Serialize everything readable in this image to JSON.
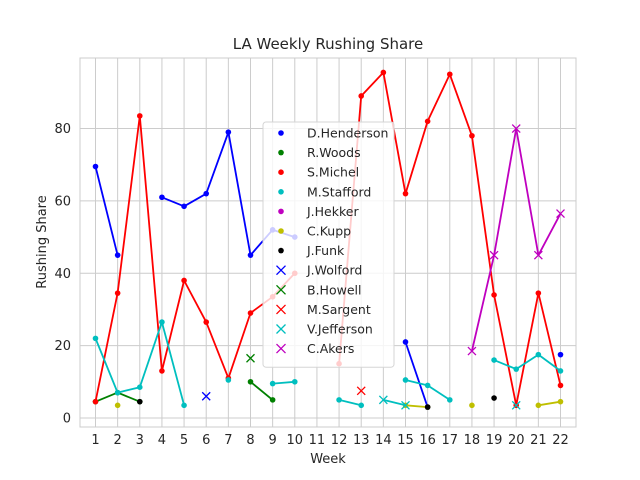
{
  "chart_data": {
    "type": "line",
    "title": "LA Weekly Rushing Share",
    "xlabel": "Week",
    "ylabel": "Rushing Share",
    "xlim": [
      0.3,
      22.7
    ],
    "ylim": [
      -2.5,
      99.5
    ],
    "x_ticks": [
      1,
      2,
      3,
      4,
      5,
      6,
      7,
      8,
      9,
      10,
      11,
      12,
      13,
      14,
      15,
      16,
      17,
      18,
      19,
      20,
      21,
      22
    ],
    "y_ticks": [
      0,
      20,
      40,
      60,
      80
    ],
    "grid": true,
    "legend_position": "center",
    "series": [
      {
        "name": "D.Henderson",
        "color": "#0000ff",
        "marker": "dot",
        "points": [
          [
            1,
            69.5
          ],
          [
            2,
            45
          ],
          null,
          [
            4,
            61
          ],
          [
            5,
            58.5
          ],
          [
            6,
            62
          ],
          [
            7,
            79
          ],
          [
            8,
            45
          ],
          [
            9,
            52
          ],
          [
            10,
            50
          ],
          null,
          null,
          null,
          null,
          [
            15,
            21
          ],
          [
            16,
            3
          ],
          null,
          null,
          null,
          null,
          null,
          [
            22,
            17.5
          ]
        ]
      },
      {
        "name": "R.Woods",
        "color": "#008000",
        "marker": "dot",
        "points": [
          [
            1,
            4.5
          ],
          [
            2,
            7
          ],
          [
            3,
            4.5
          ],
          null,
          null,
          null,
          null,
          [
            8,
            10
          ],
          [
            9,
            5
          ]
        ]
      },
      {
        "name": "S.Michel",
        "color": "#ff0000",
        "marker": "dot",
        "points": [
          [
            1,
            4.5
          ],
          [
            2,
            34.5
          ],
          [
            3,
            83.5
          ],
          [
            4,
            13
          ],
          [
            5,
            38
          ],
          [
            6,
            26.5
          ],
          [
            7,
            11
          ],
          [
            8,
            29
          ],
          [
            9,
            33.5
          ],
          [
            10,
            40
          ],
          null,
          [
            12,
            15
          ],
          [
            13,
            89
          ],
          [
            14,
            95.5
          ],
          [
            15,
            62
          ],
          [
            16,
            82
          ],
          [
            17,
            95
          ],
          [
            18,
            78
          ],
          [
            19,
            34
          ],
          [
            20,
            3.5
          ],
          [
            21,
            34.5
          ],
          [
            22,
            9
          ]
        ]
      },
      {
        "name": "M.Stafford",
        "color": "#00bfbf",
        "marker": "dot",
        "points": [
          [
            1,
            22
          ],
          [
            2,
            7
          ],
          [
            3,
            8.5
          ],
          [
            4,
            26.5
          ],
          [
            5,
            3.5
          ],
          null,
          [
            7,
            10.5
          ],
          null,
          [
            9,
            9.5
          ],
          [
            10,
            10
          ],
          null,
          [
            12,
            5
          ],
          [
            13,
            3.5
          ],
          null,
          [
            15,
            10.5
          ],
          [
            16,
            9
          ],
          [
            17,
            5
          ],
          null,
          [
            19,
            16
          ],
          [
            20,
            13.5
          ],
          [
            21,
            17.5
          ],
          [
            22,
            13
          ]
        ]
      },
      {
        "name": "J.Hekker",
        "color": "#bf00bf",
        "marker": "dot",
        "points": []
      },
      {
        "name": "C.Kupp",
        "color": "#bfbf00",
        "marker": "dot",
        "points": [
          [
            2,
            3.5
          ],
          null,
          null,
          null,
          null,
          null,
          null,
          null,
          null,
          null,
          null,
          null,
          null,
          [
            15,
            3.5
          ],
          [
            16,
            3
          ],
          null,
          [
            18,
            3.5
          ],
          null,
          null,
          [
            21,
            3.5
          ],
          [
            22,
            4.5
          ]
        ]
      },
      {
        "name": "J.Funk",
        "color": "#000000",
        "marker": "dot",
        "points": [
          [
            3,
            4.5
          ],
          null,
          null,
          null,
          null,
          null,
          null,
          null,
          null,
          null,
          null,
          null,
          [
            16,
            3
          ],
          null,
          null,
          [
            19,
            5.5
          ]
        ]
      },
      {
        "name": "J.Wolford",
        "color": "#0000ff",
        "marker": "x",
        "points": [
          [
            6,
            6
          ]
        ]
      },
      {
        "name": "B.Howell",
        "color": "#008000",
        "marker": "x",
        "points": [
          [
            8,
            16.5
          ]
        ]
      },
      {
        "name": "M.Sargent",
        "color": "#ff0000",
        "marker": "x",
        "points": [
          [
            13,
            7.5
          ]
        ]
      },
      {
        "name": "V.Jefferson",
        "color": "#00bfbf",
        "marker": "x",
        "points": [
          [
            14,
            5
          ],
          [
            15,
            3.5
          ],
          null,
          null,
          null,
          null,
          [
            20,
            3.5
          ]
        ]
      },
      {
        "name": "C.Akers",
        "color": "#bf00bf",
        "marker": "x",
        "points": [
          [
            18,
            18.5
          ],
          [
            19,
            45
          ],
          [
            20,
            80
          ],
          [
            21,
            45
          ],
          [
            22,
            56.5
          ]
        ]
      }
    ]
  }
}
